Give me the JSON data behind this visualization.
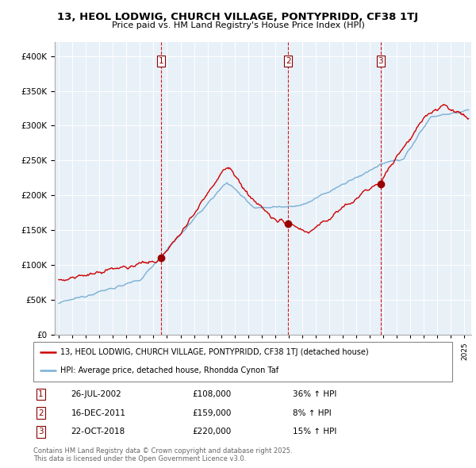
{
  "title": "13, HEOL LODWIG, CHURCH VILLAGE, PONTYPRIDD, CF38 1TJ",
  "subtitle": "Price paid vs. HM Land Registry's House Price Index (HPI)",
  "legend_line1": "13, HEOL LODWIG, CHURCH VILLAGE, PONTYPRIDD, CF38 1TJ (detached house)",
  "legend_line2": "HPI: Average price, detached house, Rhondda Cynon Taf",
  "transactions": [
    {
      "num": 1,
      "date": "26-JUL-2002",
      "price": 108000,
      "change": "36% ↑ HPI"
    },
    {
      "num": 2,
      "date": "16-DEC-2011",
      "price": 159000,
      "change": "8% ↑ HPI"
    },
    {
      "num": 3,
      "date": "22-OCT-2018",
      "price": 220000,
      "change": "15% ↑ HPI"
    }
  ],
  "transaction_years": [
    2002.56,
    2011.96,
    2018.81
  ],
  "copyright": "Contains HM Land Registry data © Crown copyright and database right 2025.\nThis data is licensed under the Open Government Licence v3.0.",
  "line_color_red": "#cc0000",
  "line_color_blue": "#7ab0d4",
  "bg_color": "#e8f0f8",
  "dashed_color": "#cc0000",
  "ylim": [
    0,
    420000
  ],
  "yticks": [
    0,
    50000,
    100000,
    150000,
    200000,
    250000,
    300000,
    350000,
    400000
  ],
  "xlim_start": 1994.7,
  "xlim_end": 2025.5
}
